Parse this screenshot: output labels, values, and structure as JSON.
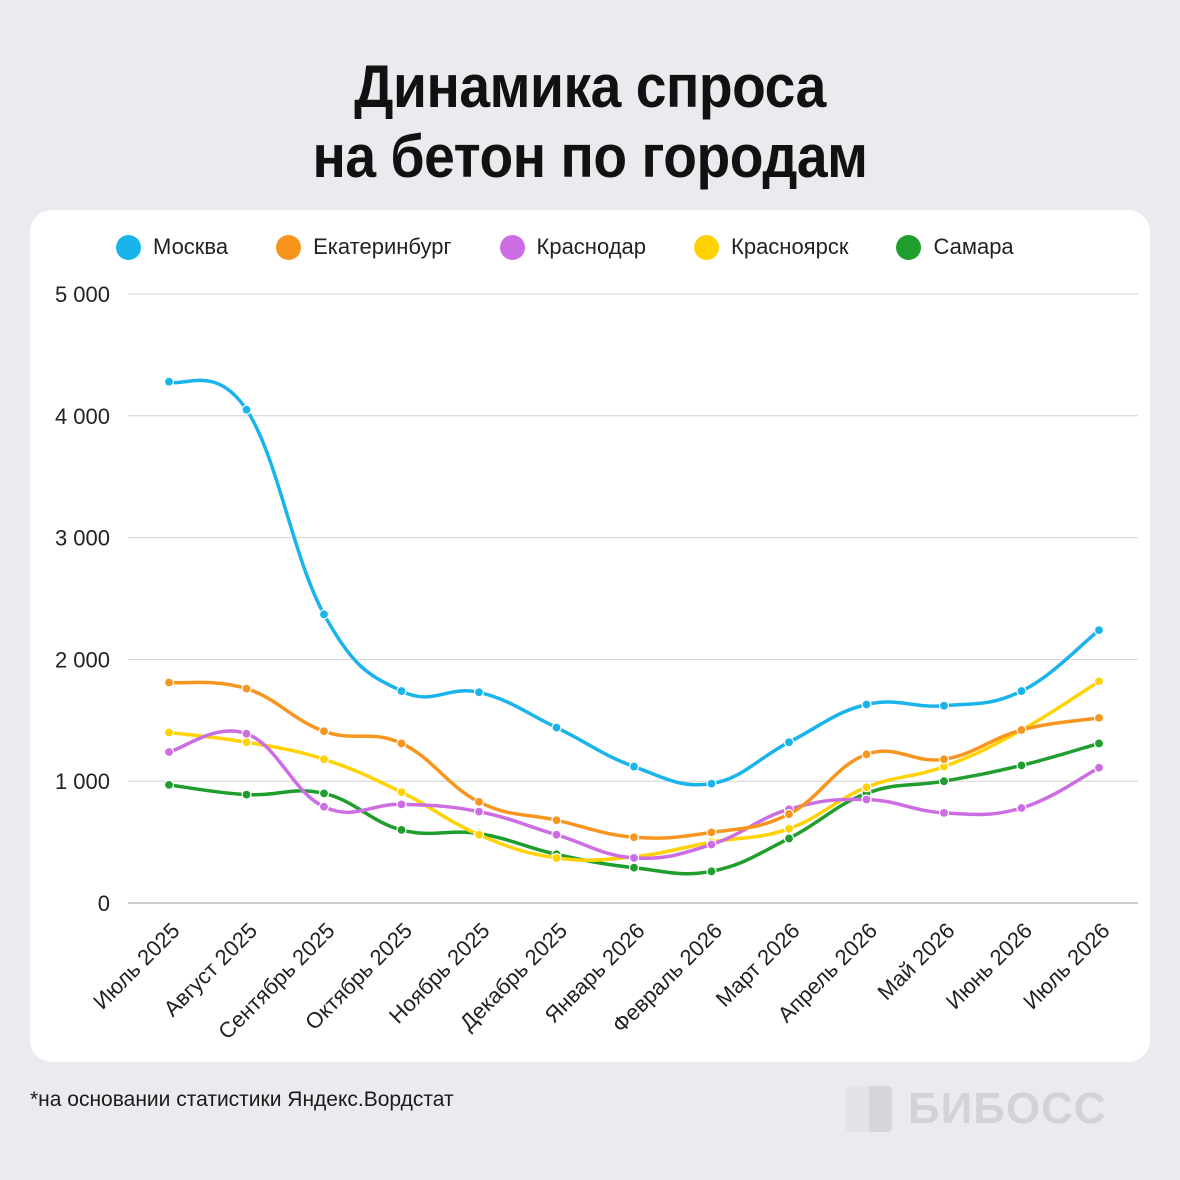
{
  "header": {
    "title_line1": "Динамика спроса",
    "title_line2": "на бетон по городам"
  },
  "footnote": "*на основании статистики Яндекс.Вордстат",
  "brand": {
    "name": "БИБОСС",
    "logo_icon": "brand-logo-icon"
  },
  "chart_data": {
    "type": "line",
    "title": "Динамика спроса на бетон по городам",
    "xlabel": "",
    "ylabel": "",
    "ylim": [
      0,
      5000
    ],
    "yticks": [
      0,
      1000,
      2000,
      3000,
      4000,
      5000
    ],
    "ytick_labels": [
      "0",
      "1 000",
      "2 000",
      "3 000",
      "4 000",
      "5 000"
    ],
    "grid": true,
    "legend_position": "top",
    "smooth": true,
    "categories": [
      "Июль 2025",
      "Август 2025",
      "Сентябрь 2025",
      "Октябрь 2025",
      "Ноябрь 2025",
      "Декабрь 2025",
      "Январь 2026",
      "Февраль 2026",
      "Март 2026",
      "Апрель 2026",
      "Май 2026",
      "Июнь 2026",
      "Июль 2026"
    ],
    "series": [
      {
        "name": "Москва",
        "color": "#19b4ec",
        "values": [
          4280,
          4050,
          2370,
          1740,
          1730,
          1440,
          1120,
          980,
          1320,
          1630,
          1620,
          1740,
          2240
        ]
      },
      {
        "name": "Екатеринбург",
        "color": "#f7951e",
        "values": [
          1810,
          1760,
          1410,
          1310,
          830,
          680,
          540,
          580,
          730,
          1220,
          1180,
          1420,
          1520
        ]
      },
      {
        "name": "Краснодар",
        "color": "#cd6de3",
        "values": [
          1240,
          1390,
          790,
          810,
          750,
          560,
          370,
          480,
          770,
          850,
          740,
          780,
          1110
        ]
      },
      {
        "name": "Красноярск",
        "color": "#ffd200",
        "values": [
          1400,
          1320,
          1180,
          910,
          560,
          370,
          380,
          500,
          610,
          950,
          1120,
          1420,
          1820
        ]
      },
      {
        "name": "Самара",
        "color": "#1f9e2e",
        "values": [
          970,
          890,
          900,
          600,
          570,
          400,
          290,
          260,
          530,
          900,
          1000,
          1130,
          1310
        ]
      }
    ]
  }
}
